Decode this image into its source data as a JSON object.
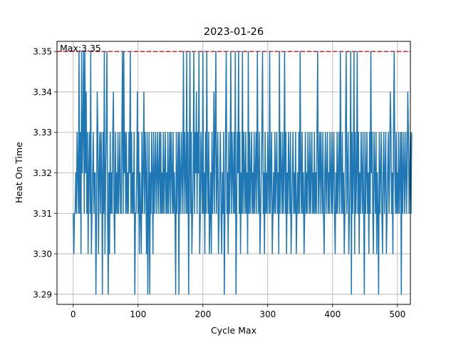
{
  "chart_data": {
    "type": "line",
    "title": "2023-01-26",
    "xlabel": "Cycle Max",
    "ylabel": "Heat On Time",
    "xlim": [
      -25,
      520
    ],
    "ylim": [
      3.2875,
      3.3525
    ],
    "x_ticks": [
      0,
      100,
      200,
      300,
      400,
      500
    ],
    "y_ticks": [
      3.29,
      3.3,
      3.31,
      3.32,
      3.33,
      3.34,
      3.35
    ],
    "x_tick_labels": [
      "0",
      "100",
      "200",
      "300",
      "400",
      "500"
    ],
    "y_tick_labels": [
      "3.29",
      "3.30",
      "3.31",
      "3.32",
      "3.33",
      "3.34",
      "3.35"
    ],
    "grid": true,
    "reference_line": {
      "y": 3.35,
      "style": "dashed",
      "color": "#d62728"
    },
    "annotation": {
      "text": "Max:3.35",
      "x": -20,
      "y": 3.35
    },
    "series": [
      {
        "color": "#1f77b4",
        "x_start": 0,
        "x_step": 1,
        "values": [
          3.31,
          3.3,
          3.31,
          3.31,
          3.32,
          3.31,
          3.33,
          3.32,
          3.31,
          3.35,
          3.31,
          3.33,
          3.3,
          3.35,
          3.32,
          3.33,
          3.35,
          3.31,
          3.35,
          3.32,
          3.34,
          3.31,
          3.33,
          3.3,
          3.32,
          3.33,
          3.31,
          3.35,
          3.3,
          3.31,
          3.32,
          3.33,
          3.31,
          3.32,
          3.32,
          3.29,
          3.31,
          3.34,
          3.33,
          3.3,
          3.32,
          3.33,
          3.31,
          3.33,
          3.32,
          3.29,
          3.33,
          3.31,
          3.35,
          3.3,
          3.32,
          3.33,
          3.35,
          3.31,
          3.29,
          3.32,
          3.3,
          3.33,
          3.31,
          3.32,
          3.31,
          3.33,
          3.34,
          3.31,
          3.3,
          3.33,
          3.31,
          3.32,
          3.31,
          3.33,
          3.31,
          3.32,
          3.33,
          3.31,
          3.31,
          3.33,
          3.35,
          3.31,
          3.35,
          3.32,
          3.33,
          3.31,
          3.33,
          3.31,
          3.32,
          3.31,
          3.33,
          3.32,
          3.35,
          3.31,
          3.33,
          3.31,
          3.32,
          3.31,
          3.33,
          3.29,
          3.31,
          3.31,
          3.32,
          3.34,
          3.31,
          3.33,
          3.3,
          3.32,
          3.31,
          3.3,
          3.33,
          3.31,
          3.32,
          3.34,
          3.31,
          3.33,
          3.32,
          3.3,
          3.33,
          3.29,
          3.31,
          3.33,
          3.29,
          3.32,
          3.31,
          3.33,
          3.32,
          3.3,
          3.33,
          3.31,
          3.32,
          3.33,
          3.31,
          3.32,
          3.33,
          3.31,
          3.32,
          3.33,
          3.31,
          3.33,
          3.31,
          3.32,
          3.31,
          3.33,
          3.31,
          3.32,
          3.33,
          3.31,
          3.32,
          3.31,
          3.33,
          3.31,
          3.32,
          3.33,
          3.31,
          3.33,
          3.32,
          3.31,
          3.33,
          3.31,
          3.32,
          3.31,
          3.29,
          3.33,
          3.31,
          3.32,
          3.33,
          3.29,
          3.33,
          3.31,
          3.32,
          3.33,
          3.31,
          3.32,
          3.35,
          3.31,
          3.33,
          3.32,
          3.31,
          3.35,
          3.31,
          3.33,
          3.29,
          3.32,
          3.35,
          3.31,
          3.33,
          3.3,
          3.31,
          3.32,
          3.35,
          3.31,
          3.33,
          3.32,
          3.34,
          3.31,
          3.33,
          3.32,
          3.35,
          3.3,
          3.31,
          3.33,
          3.32,
          3.31,
          3.35,
          3.31,
          3.32,
          3.3,
          3.33,
          3.31,
          3.35,
          3.32,
          3.31,
          3.33,
          3.3,
          3.31,
          3.32,
          3.3,
          3.33,
          3.31,
          3.32,
          3.34,
          3.31,
          3.33,
          3.35,
          3.31,
          3.32,
          3.33,
          3.3,
          3.31,
          3.32,
          3.33,
          3.31,
          3.3,
          3.32,
          3.31,
          3.33,
          3.29,
          3.31,
          3.33,
          3.35,
          3.31,
          3.32,
          3.3,
          3.33,
          3.31,
          3.32,
          3.35,
          3.31,
          3.33,
          3.32,
          3.31,
          3.33,
          3.31,
          3.35,
          3.29,
          3.31,
          3.33,
          3.32,
          3.35,
          3.31,
          3.33,
          3.3,
          3.32,
          3.31,
          3.35,
          3.31,
          3.33,
          3.32,
          3.31,
          3.33,
          3.31,
          3.32,
          3.3,
          3.35,
          3.31,
          3.33,
          3.31,
          3.32,
          3.33,
          3.31,
          3.32,
          3.31,
          3.33,
          3.31,
          3.32,
          3.33,
          3.31,
          3.35,
          3.32,
          3.31,
          3.33,
          3.3,
          3.31,
          3.32,
          3.33,
          3.35,
          3.31,
          3.32,
          3.3,
          3.33,
          3.31,
          3.32,
          3.31,
          3.33,
          3.32,
          3.31,
          3.35,
          3.31,
          3.32,
          3.33,
          3.3,
          3.31,
          3.32,
          3.31,
          3.33,
          3.31,
          3.32,
          3.33,
          3.31,
          3.32,
          3.3,
          3.35,
          3.31,
          3.33,
          3.32,
          3.31,
          3.33,
          3.31,
          3.32,
          3.35,
          3.31,
          3.33,
          3.3,
          3.32,
          3.31,
          3.33,
          3.32,
          3.31,
          3.33,
          3.3,
          3.31,
          3.32,
          3.33,
          3.31,
          3.32,
          3.31,
          3.33,
          3.3,
          3.31,
          3.32,
          3.31,
          3.33,
          3.31,
          3.35,
          3.32,
          3.31,
          3.33,
          3.31,
          3.32,
          3.3,
          3.31,
          3.33,
          3.31,
          3.32,
          3.31,
          3.33,
          3.32,
          3.31,
          3.33,
          3.31,
          3.32,
          3.33,
          3.31,
          3.32,
          3.31,
          3.33,
          3.31,
          3.32,
          3.31,
          3.33,
          3.35,
          3.31,
          3.32,
          3.33,
          3.31,
          3.33,
          3.32,
          3.31,
          3.33,
          3.31,
          3.3,
          3.32,
          3.33,
          3.31,
          3.32,
          3.33,
          3.31,
          3.32,
          3.31,
          3.33,
          3.32,
          3.31,
          3.33,
          3.31,
          3.32,
          3.33,
          3.31,
          3.3,
          3.32,
          3.31,
          3.33,
          3.31,
          3.32,
          3.33,
          3.31,
          3.35,
          3.32,
          3.31,
          3.33,
          3.31,
          3.32,
          3.3,
          3.31,
          3.33,
          3.35,
          3.31,
          3.32,
          3.33,
          3.3,
          3.31,
          3.32,
          3.35,
          3.29,
          3.33,
          3.31,
          3.32,
          3.35,
          3.3,
          3.33,
          3.31,
          3.32,
          3.35,
          3.31,
          3.33,
          3.3,
          3.32,
          3.31,
          3.33,
          3.32,
          3.31,
          3.33,
          3.31,
          3.29,
          3.33,
          3.31,
          3.32,
          3.33,
          3.31,
          3.32,
          3.3,
          3.33,
          3.31,
          3.35,
          3.32,
          3.33,
          3.31,
          3.3,
          3.33,
          3.32,
          3.31,
          3.33,
          3.3,
          3.32,
          3.31,
          3.29,
          3.33,
          3.31,
          3.32,
          3.33,
          3.31,
          3.3,
          3.32,
          3.33,
          3.31,
          3.32,
          3.33,
          3.3,
          3.31,
          3.32,
          3.33,
          3.31,
          3.32,
          3.34,
          3.33,
          3.31,
          3.32,
          3.3,
          3.33,
          3.35,
          3.32,
          3.31,
          3.33,
          3.31,
          3.32,
          3.31,
          3.33,
          3.31,
          3.32,
          3.33,
          3.29,
          3.33,
          3.31,
          3.32,
          3.33,
          3.31,
          3.32,
          3.33,
          3.31,
          3.32,
          3.34,
          3.33,
          3.31,
          3.32,
          3.33,
          3.31,
          3.33
        ]
      }
    ]
  }
}
